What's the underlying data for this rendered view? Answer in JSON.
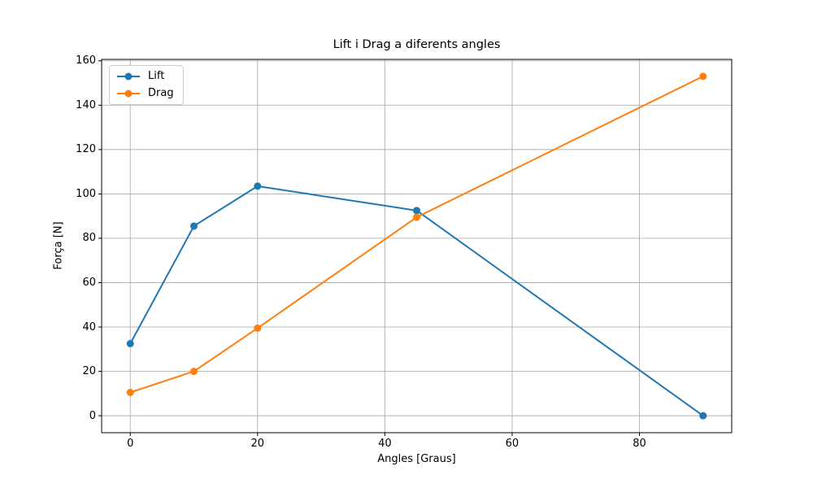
{
  "figure": {
    "background": "#ffffff"
  },
  "chart_data": {
    "type": "line",
    "title": "Lift i Drag a diferents angles",
    "xlabel": "Angles [Graus]",
    "ylabel": "Força [N]",
    "x": [
      0,
      10,
      20,
      45,
      90
    ],
    "series": [
      {
        "name": "Lift",
        "color": "#1f77b4",
        "values": [
          32.5,
          85.5,
          103.5,
          92.5,
          0
        ]
      },
      {
        "name": "Drag",
        "color": "#ff7f0e",
        "values": [
          10.5,
          20,
          39.5,
          89.5,
          153
        ]
      }
    ],
    "xticks": [
      0,
      20,
      40,
      60,
      80
    ],
    "yticks": [
      0,
      20,
      40,
      60,
      80,
      100,
      120,
      140,
      160
    ],
    "xlim": [
      -4.5,
      94.5
    ],
    "ylim": [
      -7.65,
      160.65
    ],
    "grid": true,
    "legend": {
      "position": "upper left",
      "entries": [
        "Lift",
        "Drag"
      ]
    },
    "colors": {
      "grid": "#b0b0b0",
      "spine": "#000000",
      "text": "#000000",
      "legend_border": "#cccccc"
    },
    "marker": "circle",
    "line_width": 2,
    "marker_radius": 4.5
  }
}
